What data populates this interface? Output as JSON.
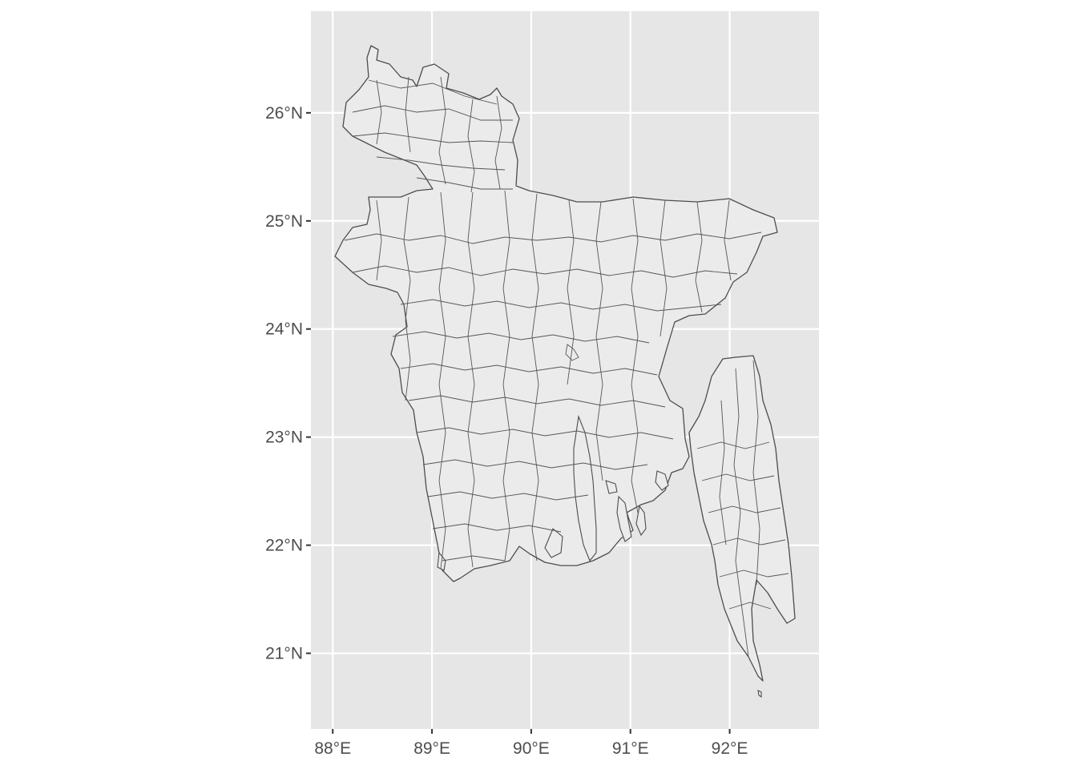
{
  "map": {
    "type": "choropleth-outline",
    "region_fill": "#ebebeb",
    "border_color": "#4d4d4d",
    "panel_background": "#e6e6e6",
    "grid_color": "#ffffff",
    "x_ticks": [
      {
        "value": 88,
        "label": "88°E"
      },
      {
        "value": 89,
        "label": "89°E"
      },
      {
        "value": 90,
        "label": "90°E"
      },
      {
        "value": 91,
        "label": "91°E"
      },
      {
        "value": 92,
        "label": "92°E"
      }
    ],
    "y_ticks": [
      {
        "value": 21,
        "label": "21°N"
      },
      {
        "value": 22,
        "label": "22°N"
      },
      {
        "value": 23,
        "label": "23°N"
      },
      {
        "value": 24,
        "label": "24°N"
      },
      {
        "value": 25,
        "label": "25°N"
      },
      {
        "value": 26,
        "label": "26°N"
      }
    ],
    "xlim": [
      87.78,
      92.9
    ],
    "ylim": [
      20.3,
      26.94
    ]
  }
}
